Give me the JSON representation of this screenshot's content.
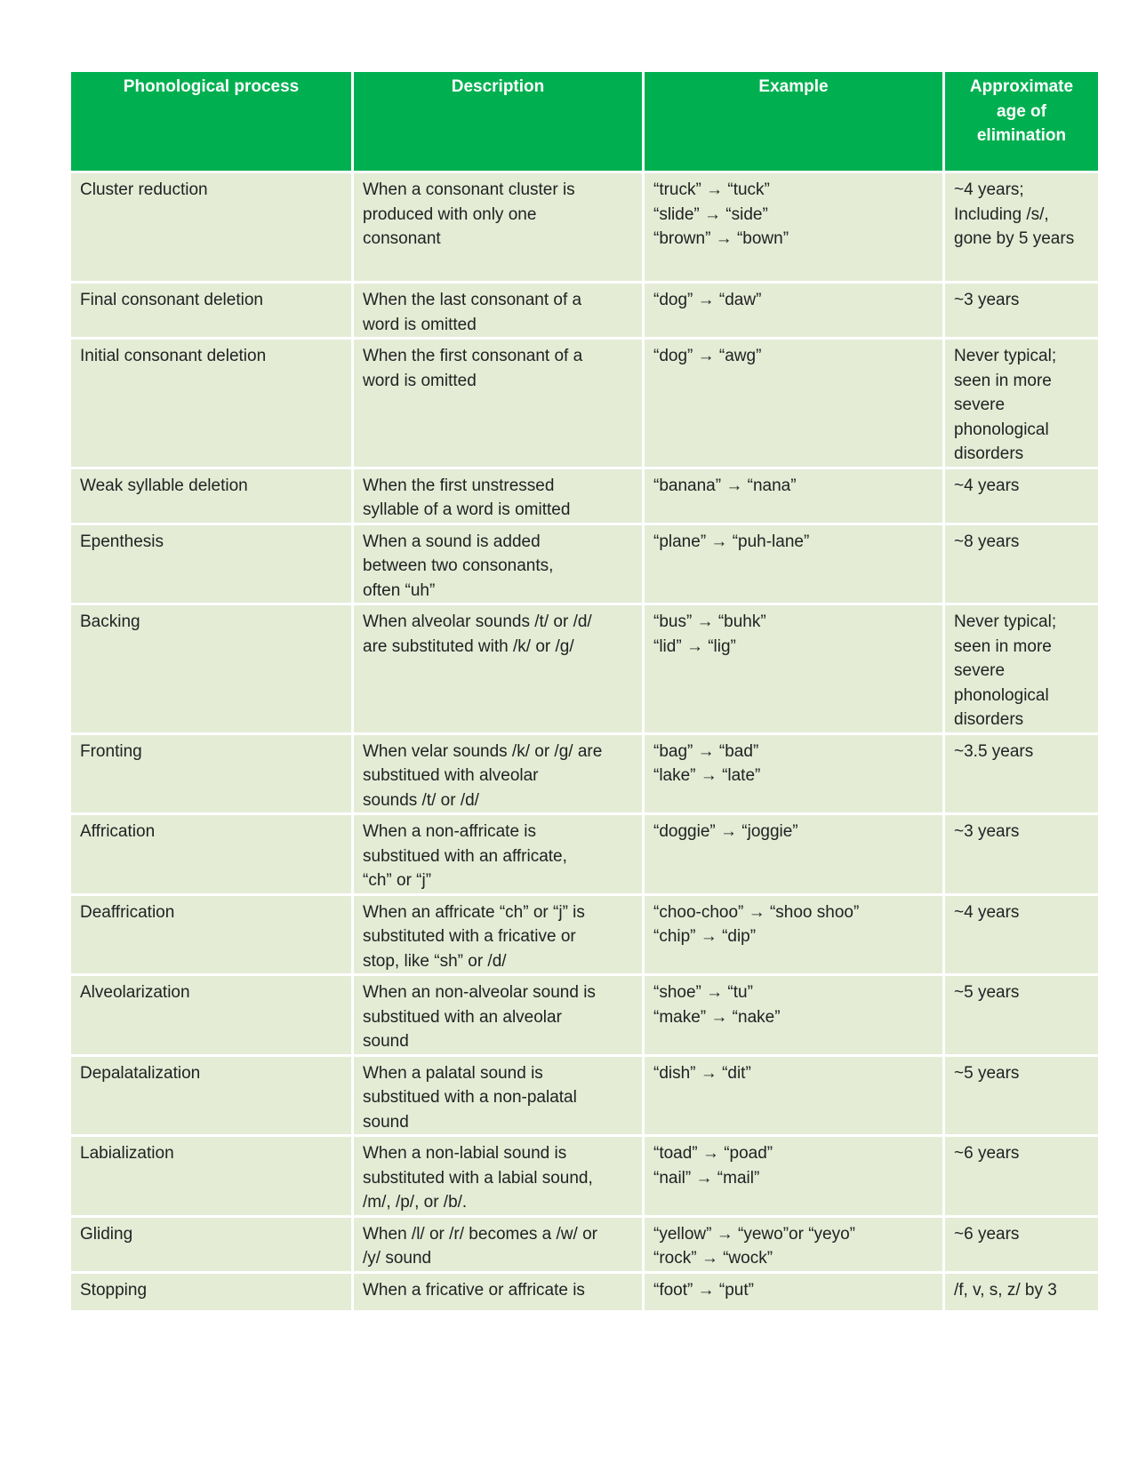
{
  "colors": {
    "header_bg": "#00B050",
    "cell_bg": "#E4ECD6"
  },
  "headers": [
    "Phonological process",
    "Description",
    "Example",
    "Approximate\nage of\nelimination"
  ],
  "rows": [
    {
      "process": "Cluster reduction",
      "description": "When a consonant cluster is\nproduced with only one\nconsonant",
      "example": "“truck” → “tuck”\n“slide” → “side”\n“brown” → “bown”",
      "age": "~4 years;\nIncluding /s/,\ngone by 5 years"
    },
    {
      "process": "Final consonant deletion",
      "description": "When the last consonant of a\nword is omitted",
      "example": "“dog” → “daw”",
      "age": "~3 years"
    },
    {
      "process": "Initial consonant deletion",
      "description": "When the first consonant of a\nword is omitted",
      "example": "“dog” → “awg”",
      "age": "Never typical;\nseen in more\nsevere\nphonological\ndisorders"
    },
    {
      "process": "Weak syllable deletion",
      "description": "When the first unstressed\nsyllable of a word is omitted",
      "example": "“banana” → “nana”",
      "age": "~4 years"
    },
    {
      "process": "Epenthesis",
      "description": "When a sound is added\nbetween two consonants,\noften “uh”",
      "example": "“plane” → “puh-lane”",
      "age": "~8 years"
    },
    {
      "process": "Backing",
      "description": "When alveolar sounds /t/ or /d/\nare substituted with /k/ or /g/",
      "example": "“bus” → “buhk”\n“lid” → “lig”",
      "age": "Never typical;\nseen in more\nsevere\nphonological\ndisorders"
    },
    {
      "process": "Fronting",
      "description": "When velar sounds /k/ or /g/ are\nsubstitued with alveolar\nsounds /t/ or /d/",
      "example": "“bag” → “bad”\n“lake” → “late”",
      "age": "~3.5 years"
    },
    {
      "process": "Affrication",
      "description": "When a non-affricate is\nsubstitued with an affricate,\n“ch” or “j”",
      "example": "“doggie” → “joggie”",
      "age": "~3 years"
    },
    {
      "process": "Deaffrication",
      "description": "When an affricate “ch” or “j” is\nsubstituted with a fricative or\nstop, like “sh” or /d/",
      "example": "“choo-choo” → “shoo shoo”\n“chip” → “dip”",
      "age": "~4 years"
    },
    {
      "process": "Alveolarization",
      "description": "When an non-alveolar sound is\nsubstitued with an alveolar\nsound",
      "example": "“shoe” → “tu”\n“make” → “nake”",
      "age": "~5 years"
    },
    {
      "process": "Depalatalization",
      "description": "When a palatal sound is\nsubstitued with a non-palatal\nsound",
      "example": "“dish” → “dit”",
      "age": "~5 years"
    },
    {
      "process": "Labialization",
      "description": "When a non-labial sound is\nsubstituted with a labial sound,\n/m/, /p/, or /b/.",
      "example": "“toad” → “poad”\n“nail” → “mail”",
      "age": "~6 years"
    },
    {
      "process": "Gliding",
      "description": "When /l/ or /r/ becomes a /w/ or\n/y/ sound",
      "example": "“yellow” → “yewo”or “yeyo”\n“rock” → “wock”",
      "age": "~6 years"
    },
    {
      "process": "Stopping",
      "description": "When a fricative or affricate is",
      "example": "“foot” → “put”",
      "age": "/f, v, s, z/ by 3"
    }
  ]
}
